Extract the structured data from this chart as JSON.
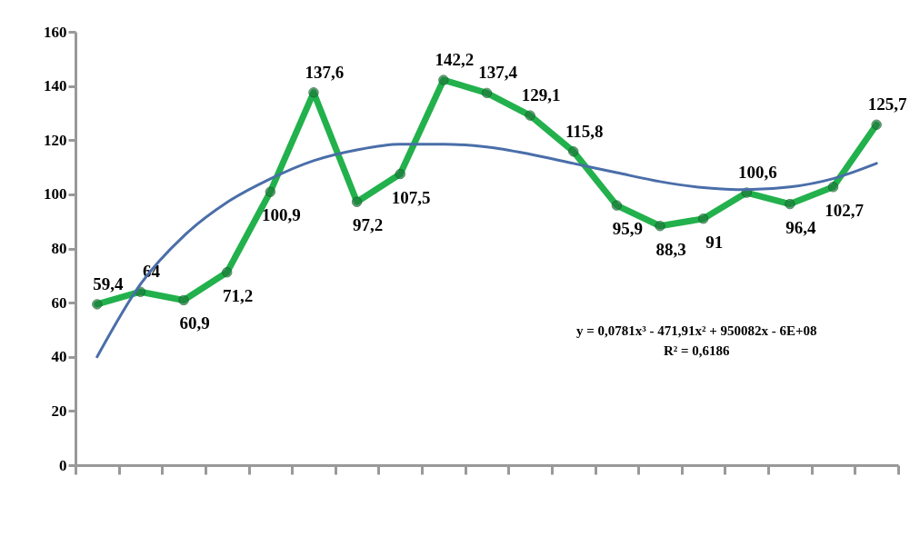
{
  "chart_data": {
    "type": "line",
    "categories": [
      null,
      null,
      null,
      null,
      null,
      null,
      null,
      null,
      null,
      null,
      null,
      null,
      null,
      null,
      null,
      null,
      null,
      null,
      null
    ],
    "series": [
      {
        "color": "#22b14c",
        "values": [
          59.4,
          64,
          60.9,
          71.2,
          100.9,
          137.6,
          97.2,
          107.5,
          142.2,
          137.4,
          129.1,
          115.8,
          95.9,
          88.3,
          91,
          100.6,
          96.4,
          102.7,
          125.7
        ],
        "value_labels": [
          "59,4",
          "64",
          "60,9",
          "71,2",
          "100,9",
          "137,6",
          "97,2",
          "107,5",
          "142,2",
          "137,4",
          "129,1",
          "115,8",
          "95,9",
          "88,3",
          "91",
          "100,6",
          "96,4",
          "102,7",
          "125,7"
        ]
      },
      {
        "type": "line",
        "marker": "none",
        "color": "#4a6ea9",
        "values": [
          40,
          66.8,
          84.6,
          97,
          105.7,
          112.4,
          116.4,
          118.5,
          118.5,
          117.5,
          114.8,
          111.4,
          108,
          104.7,
          102.5,
          101.7,
          102.7,
          105.8,
          111.4
        ]
      }
    ],
    "ylim": [
      0,
      160
    ],
    "yticks": [
      0,
      20,
      40,
      60,
      80,
      100,
      120,
      140,
      160
    ],
    "grid": false,
    "marker": "circle",
    "tick_labels": "y",
    "annotations": [
      "y = 0,0781x³ - 471,91x² + 950082x - 6E+08",
      "R² = 0,6186"
    ]
  }
}
